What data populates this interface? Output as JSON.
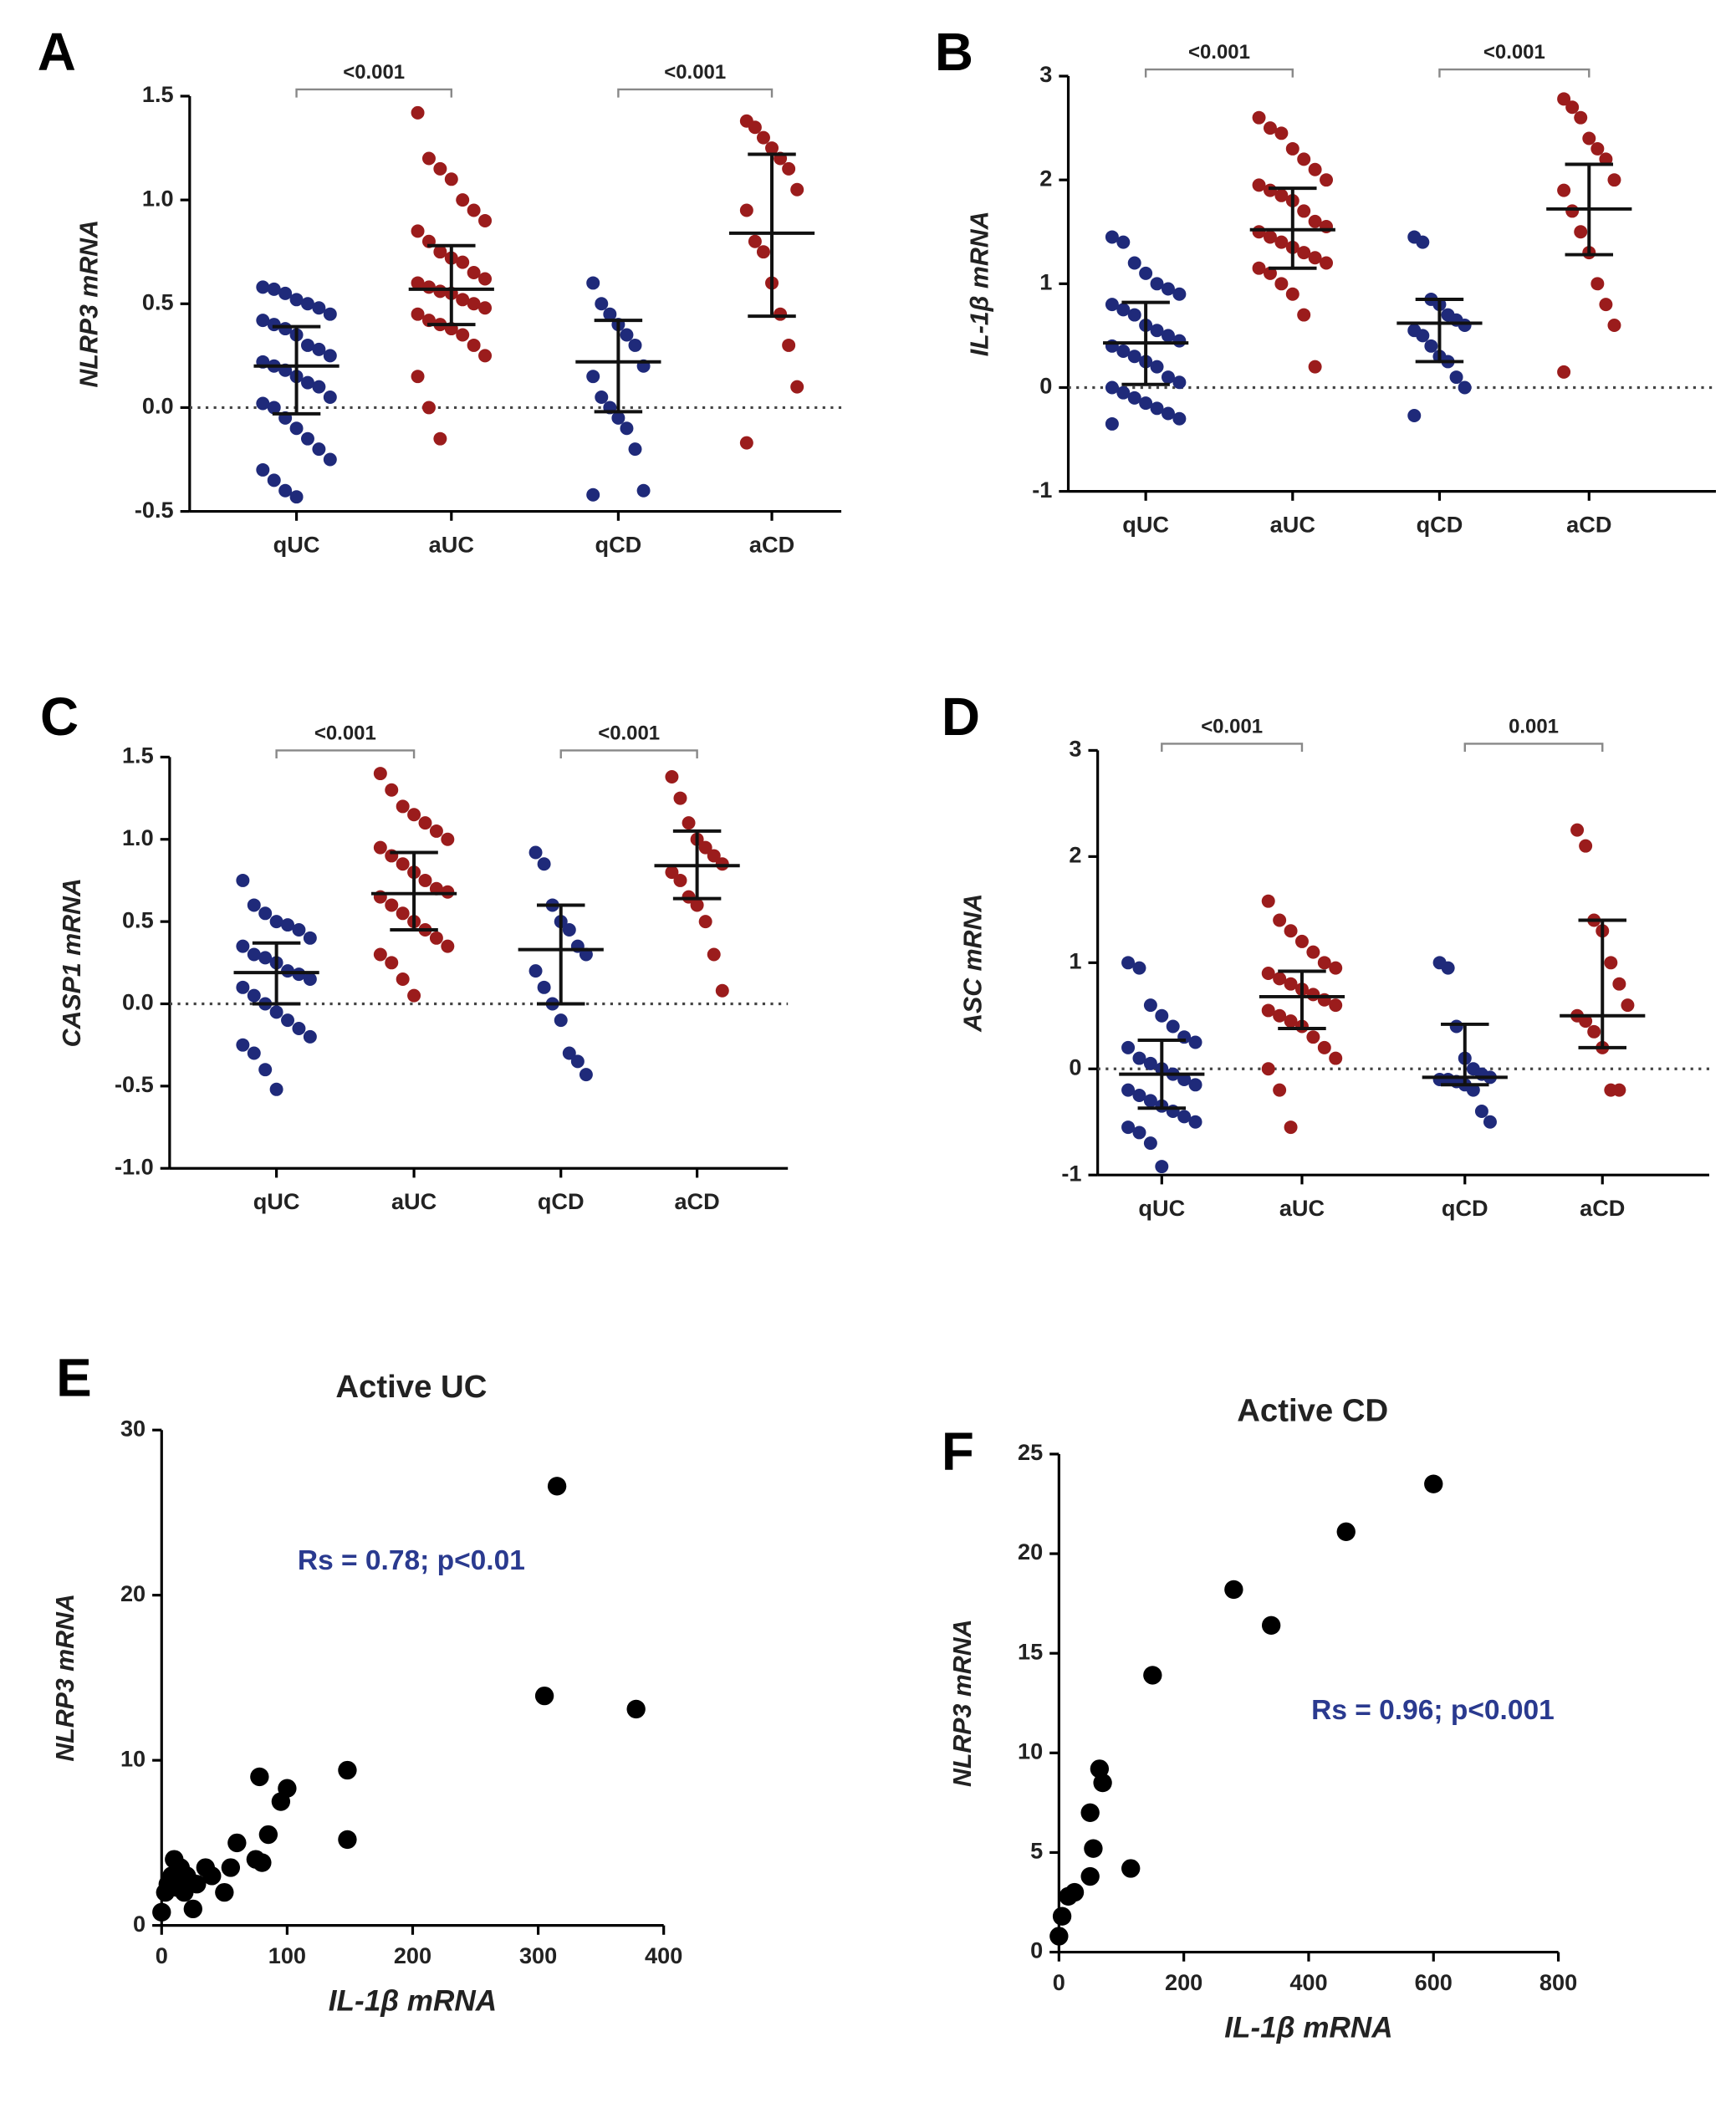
{
  "chart_data": [
    {
      "type": "dot",
      "panel": "A",
      "ylabel": "NLRP3 mRNA",
      "ylim": [
        -0.5,
        1.5
      ],
      "yticks": [
        -0.5,
        {
          "value": 0,
          "label": "0.0"
        },
        0.5,
        {
          "value": 1,
          "label": "1.0"
        },
        1.5
      ],
      "categories": [
        "qUC",
        "aUC",
        "qCD",
        "aCD"
      ],
      "groups": [
        {
          "color": "#1f2a7a",
          "median": 0.2,
          "q1": -0.03,
          "q3": 0.39,
          "values": [
            0.58,
            0.57,
            0.55,
            0.52,
            0.5,
            0.48,
            0.45,
            0.42,
            0.4,
            0.38,
            0.35,
            0.3,
            0.28,
            0.25,
            0.22,
            0.2,
            0.18,
            0.15,
            0.12,
            0.1,
            0.05,
            0.02,
            0,
            -0.05,
            -0.1,
            -0.15,
            -0.2,
            -0.25,
            -0.3,
            -0.35,
            -0.4,
            -0.43
          ]
        },
        {
          "color": "#9b1c1c",
          "median": 0.57,
          "q1": 0.4,
          "q3": 0.78,
          "values": [
            1.42,
            1.2,
            1.15,
            1.1,
            1.0,
            0.95,
            0.9,
            0.85,
            0.8,
            0.75,
            0.72,
            0.7,
            0.65,
            0.62,
            0.6,
            0.58,
            0.56,
            0.55,
            0.52,
            0.5,
            0.48,
            0.45,
            0.42,
            0.4,
            0.38,
            0.35,
            0.3,
            0.25,
            0.15,
            0,
            -0.15
          ]
        },
        {
          "color": "#1f2a7a",
          "median": 0.22,
          "q1": -0.02,
          "q3": 0.42,
          "values": [
            0.6,
            0.5,
            0.45,
            0.4,
            0.35,
            0.3,
            0.2,
            0.15,
            0.05,
            0,
            -0.05,
            -0.1,
            -0.2,
            -0.4,
            -0.42
          ]
        },
        {
          "color": "#9b1c1c",
          "median": 0.84,
          "q1": 0.44,
          "q3": 1.22,
          "values": [
            1.38,
            1.35,
            1.3,
            1.25,
            1.2,
            1.15,
            1.05,
            0.95,
            0.8,
            0.75,
            0.6,
            0.45,
            0.3,
            0.1,
            -0.17
          ]
        }
      ],
      "comparisons": [
        {
          "groups": [
            0,
            1
          ],
          "label": "<0.001"
        },
        {
          "groups": [
            2,
            3
          ],
          "label": "<0.001"
        }
      ]
    },
    {
      "type": "dot",
      "panel": "B",
      "ylabel": "IL-1β mRNA",
      "ylim": [
        -1,
        3
      ],
      "yticks": [
        -1,
        0,
        1,
        2,
        3
      ],
      "categories": [
        "qUC",
        "aUC",
        "qCD",
        "aCD"
      ],
      "groups": [
        {
          "color": "#1f2a7a",
          "median": 0.43,
          "q1": 0.03,
          "q3": 0.82,
          "values": [
            1.45,
            1.4,
            1.2,
            1.1,
            1.0,
            0.95,
            0.9,
            0.8,
            0.75,
            0.7,
            0.6,
            0.55,
            0.5,
            0.45,
            0.4,
            0.35,
            0.3,
            0.25,
            0.2,
            0.1,
            0.05,
            0,
            -0.05,
            -0.1,
            -0.15,
            -0.2,
            -0.25,
            -0.3,
            -0.35
          ]
        },
        {
          "color": "#9b1c1c",
          "median": 1.52,
          "q1": 1.15,
          "q3": 1.92,
          "values": [
            2.6,
            2.5,
            2.45,
            2.3,
            2.2,
            2.1,
            2.0,
            1.95,
            1.9,
            1.85,
            1.8,
            1.7,
            1.6,
            1.55,
            1.5,
            1.45,
            1.4,
            1.35,
            1.3,
            1.25,
            1.2,
            1.15,
            1.1,
            1.0,
            0.9,
            0.7,
            0.2
          ]
        },
        {
          "color": "#1f2a7a",
          "median": 0.62,
          "q1": 0.25,
          "q3": 0.85,
          "values": [
            1.45,
            1.4,
            0.85,
            0.8,
            0.7,
            0.65,
            0.6,
            0.55,
            0.5,
            0.4,
            0.3,
            0.25,
            0.1,
            0,
            -0.27
          ]
        },
        {
          "color": "#9b1c1c",
          "median": 1.72,
          "q1": 1.28,
          "q3": 2.15,
          "values": [
            2.78,
            2.7,
            2.6,
            2.4,
            2.3,
            2.2,
            2.0,
            1.9,
            1.7,
            1.5,
            1.3,
            1.0,
            0.8,
            0.6,
            0.15
          ]
        }
      ],
      "comparisons": [
        {
          "groups": [
            0,
            1
          ],
          "label": "<0.001"
        },
        {
          "groups": [
            2,
            3
          ],
          "label": "<0.001"
        }
      ]
    },
    {
      "type": "dot",
      "panel": "C",
      "ylabel": "CASP1 mRNA",
      "ylim": [
        -1,
        1.5
      ],
      "yticks": [
        {
          "value": -1,
          "label": "-1.0"
        },
        -0.5,
        {
          "value": 0,
          "label": "0.0"
        },
        0.5,
        {
          "value": 1,
          "label": "1.0"
        },
        1.5
      ],
      "categories": [
        "qUC",
        "aUC",
        "qCD",
        "aCD"
      ],
      "groups": [
        {
          "color": "#1f2a7a",
          "median": 0.19,
          "q1": 0,
          "q3": 0.37,
          "values": [
            0.75,
            0.6,
            0.55,
            0.5,
            0.48,
            0.45,
            0.4,
            0.35,
            0.3,
            0.28,
            0.25,
            0.2,
            0.18,
            0.15,
            0.1,
            0.05,
            0,
            -0.05,
            -0.1,
            -0.15,
            -0.2,
            -0.25,
            -0.3,
            -0.4,
            -0.52
          ]
        },
        {
          "color": "#9b1c1c",
          "median": 0.67,
          "q1": 0.45,
          "q3": 0.92,
          "values": [
            1.4,
            1.3,
            1.2,
            1.15,
            1.1,
            1.05,
            1.0,
            0.95,
            0.9,
            0.85,
            0.8,
            0.75,
            0.7,
            0.68,
            0.65,
            0.6,
            0.55,
            0.5,
            0.45,
            0.4,
            0.35,
            0.3,
            0.25,
            0.15,
            0.05
          ]
        },
        {
          "color": "#1f2a7a",
          "median": 0.33,
          "q1": 0,
          "q3": 0.6,
          "values": [
            0.92,
            0.85,
            0.6,
            0.5,
            0.45,
            0.35,
            0.3,
            0.2,
            0.1,
            0,
            -0.1,
            -0.3,
            -0.35,
            -0.43
          ]
        },
        {
          "color": "#9b1c1c",
          "median": 0.84,
          "q1": 0.64,
          "q3": 1.05,
          "values": [
            1.38,
            1.25,
            1.1,
            1.0,
            0.95,
            0.9,
            0.85,
            0.8,
            0.75,
            0.65,
            0.6,
            0.5,
            0.3,
            0.08
          ]
        }
      ],
      "comparisons": [
        {
          "groups": [
            0,
            1
          ],
          "label": "<0.001"
        },
        {
          "groups": [
            2,
            3
          ],
          "label": "<0.001"
        }
      ]
    },
    {
      "type": "dot",
      "panel": "D",
      "ylabel": "ASC mRNA",
      "ylim": [
        -1,
        3
      ],
      "yticks": [
        -1,
        0,
        1,
        2,
        3
      ],
      "categories": [
        "qUC",
        "aUC",
        "qCD",
        "aCD"
      ],
      "groups": [
        {
          "color": "#1f2a7a",
          "median": -0.05,
          "q1": -0.37,
          "q3": 0.27,
          "values": [
            1.0,
            0.95,
            0.6,
            0.5,
            0.4,
            0.3,
            0.25,
            0.2,
            0.1,
            0.05,
            0,
            -0.05,
            -0.1,
            -0.15,
            -0.2,
            -0.25,
            -0.3,
            -0.35,
            -0.4,
            -0.45,
            -0.5,
            -0.55,
            -0.6,
            -0.7,
            -0.92
          ]
        },
        {
          "color": "#9b1c1c",
          "median": 0.68,
          "q1": 0.38,
          "q3": 0.92,
          "values": [
            1.58,
            1.4,
            1.3,
            1.2,
            1.1,
            1.0,
            0.95,
            0.9,
            0.85,
            0.8,
            0.75,
            0.7,
            0.65,
            0.6,
            0.55,
            0.5,
            0.45,
            0.4,
            0.3,
            0.2,
            0.1,
            0,
            -0.2,
            -0.55
          ]
        },
        {
          "color": "#1f2a7a",
          "median": -0.08,
          "q1": -0.15,
          "q3": 0.42,
          "values": [
            1.0,
            0.95,
            0.4,
            0.1,
            0,
            -0.05,
            -0.08,
            -0.1,
            -0.1,
            -0.12,
            -0.15,
            -0.2,
            -0.4,
            -0.5
          ]
        },
        {
          "color": "#9b1c1c",
          "median": 0.5,
          "q1": 0.2,
          "q3": 1.4,
          "values": [
            2.25,
            2.1,
            1.4,
            1.3,
            1.0,
            0.8,
            0.6,
            0.5,
            0.45,
            0.35,
            0.2,
            -0.2,
            -0.2
          ]
        }
      ],
      "comparisons": [
        {
          "groups": [
            0,
            1
          ],
          "label": "<0.001"
        },
        {
          "groups": [
            2,
            3
          ],
          "label": "0.001"
        }
      ]
    },
    {
      "type": "scatter",
      "panel": "E",
      "title": "Active UC",
      "annotation": "Rs = 0.78; p<0.01",
      "xlabel": "IL-1β mRNA",
      "ylabel": "NLRP3 mRNA",
      "color": "#000000",
      "xlim": [
        0,
        400
      ],
      "xticks": [
        0,
        100,
        200,
        300,
        400
      ],
      "ylim": [
        0,
        30
      ],
      "yticks": [
        0,
        10,
        20,
        30
      ],
      "x": [
        0,
        3,
        5,
        8,
        10,
        12,
        15,
        18,
        20,
        22,
        25,
        28,
        35,
        40,
        50,
        55,
        60,
        75,
        78,
        80,
        85,
        95,
        100,
        148,
        148,
        305,
        315,
        378
      ],
      "values": [
        0.8,
        2,
        2.5,
        3,
        4,
        2.3,
        3.5,
        2,
        3,
        2.7,
        1,
        2.5,
        3.5,
        3,
        2,
        3.5,
        5,
        4,
        9,
        3.8,
        5.5,
        7.5,
        8.3,
        9.4,
        5.2,
        13.9,
        26.6,
        13.1
      ]
    },
    {
      "type": "scatter",
      "panel": "F",
      "title": "Active CD",
      "annotation": "Rs = 0.96; p<0.001",
      "xlabel": "IL-1β mRNA",
      "ylabel": "NLRP3 mRNA",
      "color": "#000000",
      "xlim": [
        0,
        800
      ],
      "xticks": [
        0,
        200,
        400,
        600,
        800
      ],
      "ylim": [
        0,
        25
      ],
      "yticks": [
        0,
        5,
        10,
        15,
        20,
        25
      ],
      "x": [
        0,
        5,
        15,
        25,
        50,
        50,
        55,
        65,
        70,
        115,
        150,
        280,
        340,
        460,
        600
      ],
      "values": [
        0.8,
        1.8,
        2.8,
        3,
        3.8,
        7,
        5.2,
        9.2,
        8.5,
        4.2,
        13.9,
        18.2,
        16.4,
        21.1,
        23.5
      ]
    }
  ]
}
